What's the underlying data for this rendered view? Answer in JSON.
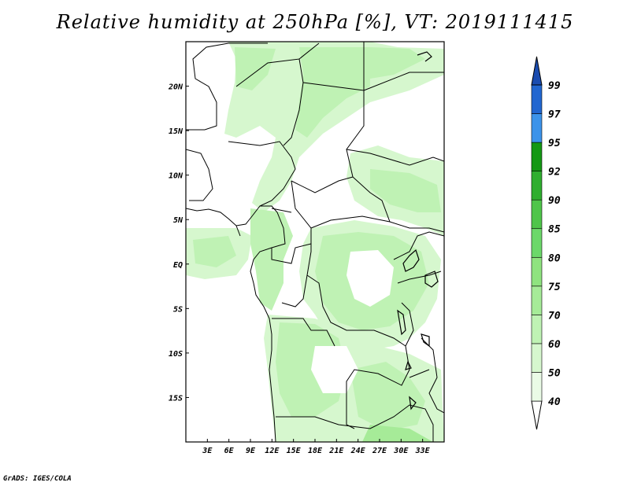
{
  "title": "Relative humidity at 250hPa [%], VT: 2019111415",
  "credit": "GrADS: IGES/COLA",
  "map": {
    "lon_range": [
      0,
      36
    ],
    "lat_range": [
      -20,
      25
    ],
    "lon_ticks": [
      3,
      6,
      9,
      12,
      15,
      18,
      21,
      24,
      27,
      30,
      33
    ],
    "lon_tick_labels": [
      "3E",
      "6E",
      "9E",
      "12E",
      "15E",
      "18E",
      "21E",
      "24E",
      "27E",
      "30E",
      "33E"
    ],
    "lat_ticks": [
      20,
      15,
      10,
      5,
      0,
      -5,
      -10,
      -15
    ],
    "lat_tick_labels": [
      "20N",
      "15N",
      "10N",
      "5N",
      "EQ",
      "5S",
      "10S",
      "15S"
    ]
  },
  "colorbar": {
    "levels": [
      "40",
      "50",
      "60",
      "70",
      "75",
      "80",
      "85",
      "90",
      "92",
      "95",
      "97",
      "99"
    ],
    "colors": [
      "#ffffff",
      "#eafbe6",
      "#d6f7ce",
      "#bff2b4",
      "#a6eb98",
      "#8fe37f",
      "#6cd86a",
      "#4fc54a",
      "#2fae2f",
      "#149814",
      "#3c93ea",
      "#2166d0",
      "#1a4cb0"
    ]
  }
}
